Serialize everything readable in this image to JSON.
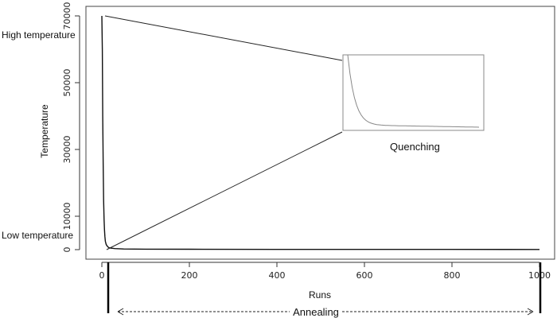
{
  "chart_data": {
    "type": "line",
    "title": "",
    "xlabel": "Runs",
    "ylabel": "Temperature",
    "xlim": [
      0,
      1000
    ],
    "ylim": [
      0,
      70000
    ],
    "x_ticks": [
      0,
      200,
      400,
      600,
      800,
      1000
    ],
    "y_ticks": [
      0,
      10000,
      30000,
      50000,
      70000
    ],
    "grid": false,
    "series": [
      {
        "x": [
          0,
          1,
          2,
          3,
          4,
          5,
          6,
          7,
          8,
          10,
          13,
          16,
          20,
          30,
          50,
          100,
          200,
          400,
          600,
          800,
          1000
        ],
        "y": [
          70000,
          60000,
          40000,
          25000,
          15000,
          9000,
          6000,
          4000,
          2500,
          1500,
          900,
          600,
          450,
          300,
          200,
          150,
          110,
          80,
          70,
          60,
          50
        ]
      }
    ],
    "annotations": {
      "high_label": "High temperature",
      "low_label": "Low temperature",
      "inset_label": "Quenching",
      "annealing_label": "Annealing"
    }
  }
}
